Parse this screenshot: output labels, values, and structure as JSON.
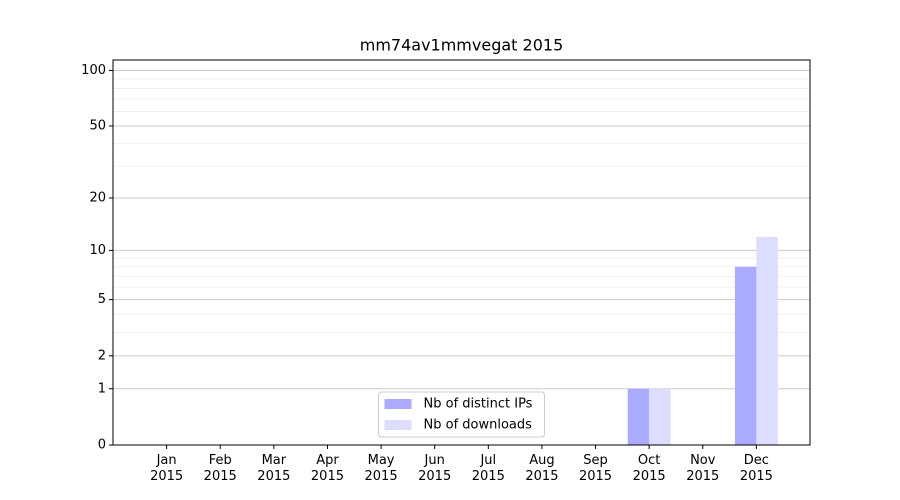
{
  "chart_data": {
    "type": "bar",
    "title": "mm74av1mmvegat 2015",
    "categories": [
      "Jan 2015",
      "Feb 2015",
      "Mar 2015",
      "Apr 2015",
      "May 2015",
      "Jun 2015",
      "Jul 2015",
      "Aug 2015",
      "Sep 2015",
      "Oct 2015",
      "Nov 2015",
      "Dec 2015"
    ],
    "series": [
      {
        "name": "Nb of distinct IPs",
        "color": "#aaaaff",
        "values": [
          0,
          0,
          0,
          0,
          0,
          0,
          0,
          0,
          0,
          1,
          0,
          8
        ]
      },
      {
        "name": "Nb of downloads",
        "color": "#ddddff",
        "values": [
          0,
          0,
          0,
          0,
          0,
          0,
          0,
          0,
          0,
          1,
          0,
          12
        ]
      }
    ],
    "yscale": "log1p",
    "ylim": [
      0,
      114
    ],
    "yticks": [
      0,
      1,
      2,
      5,
      10,
      20,
      50,
      100
    ],
    "minor_yticks": [
      3,
      4,
      6,
      7,
      8,
      9,
      30,
      40,
      60,
      70,
      80,
      90
    ],
    "grid": true,
    "legend": "lower center"
  }
}
